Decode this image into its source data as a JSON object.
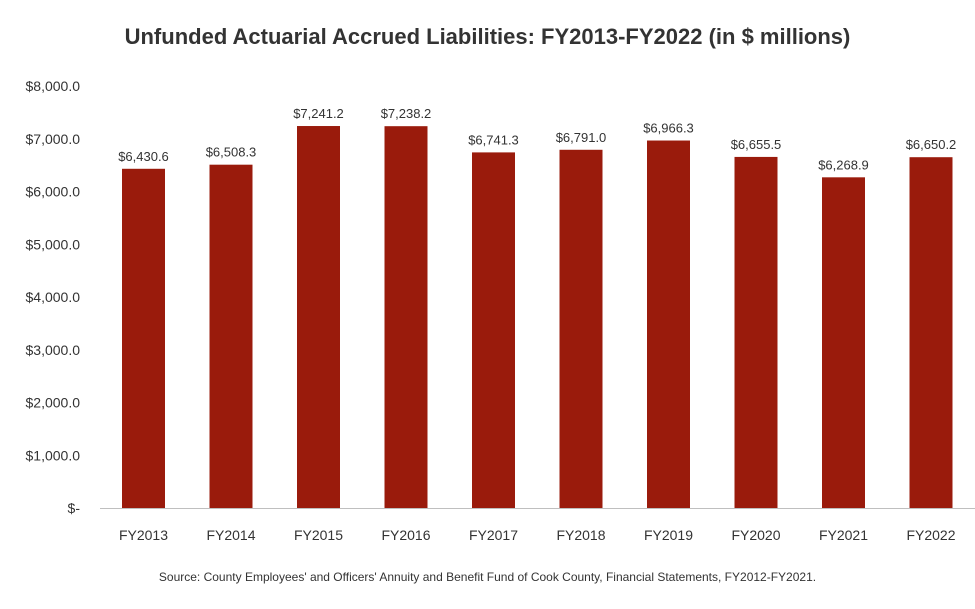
{
  "chart_data": {
    "type": "bar",
    "title": "Unfunded Actuarial Accrued Liabilities: FY2013-FY2022 (in $ millions)",
    "categories": [
      "FY2013",
      "FY2014",
      "FY2015",
      "FY2016",
      "FY2017",
      "FY2018",
      "FY2019",
      "FY2020",
      "FY2021",
      "FY2022"
    ],
    "values": [
      6430.6,
      6508.3,
      7241.2,
      7238.2,
      6741.3,
      6791.0,
      6966.3,
      6655.5,
      6268.9,
      6650.2
    ],
    "data_labels": [
      "$6,430.6",
      "$6,508.3",
      "$7,241.2",
      "$7,238.2",
      "$6,741.3",
      "$6,791.0",
      "$6,966.3",
      "$6,655.5",
      "$6,268.9",
      "$6,650.2"
    ],
    "y_ticks": [
      0,
      1000,
      2000,
      3000,
      4000,
      5000,
      6000,
      7000,
      8000
    ],
    "y_tick_labels": [
      "$-",
      "$1,000.0",
      "$2,000.0",
      "$3,000.0",
      "$4,000.0",
      "$5,000.0",
      "$6,000.0",
      "$7,000.0",
      "$8,000.0"
    ],
    "ylim": [
      0,
      8000
    ],
    "xlabel": "",
    "ylabel": "",
    "grid": false,
    "legend": false,
    "bar_color": "#9A1B0C",
    "source": "Source: County Employees' and Officers' Annuity and Benefit Fund of Cook County, Financial Statements, FY2012-FY2021."
  }
}
